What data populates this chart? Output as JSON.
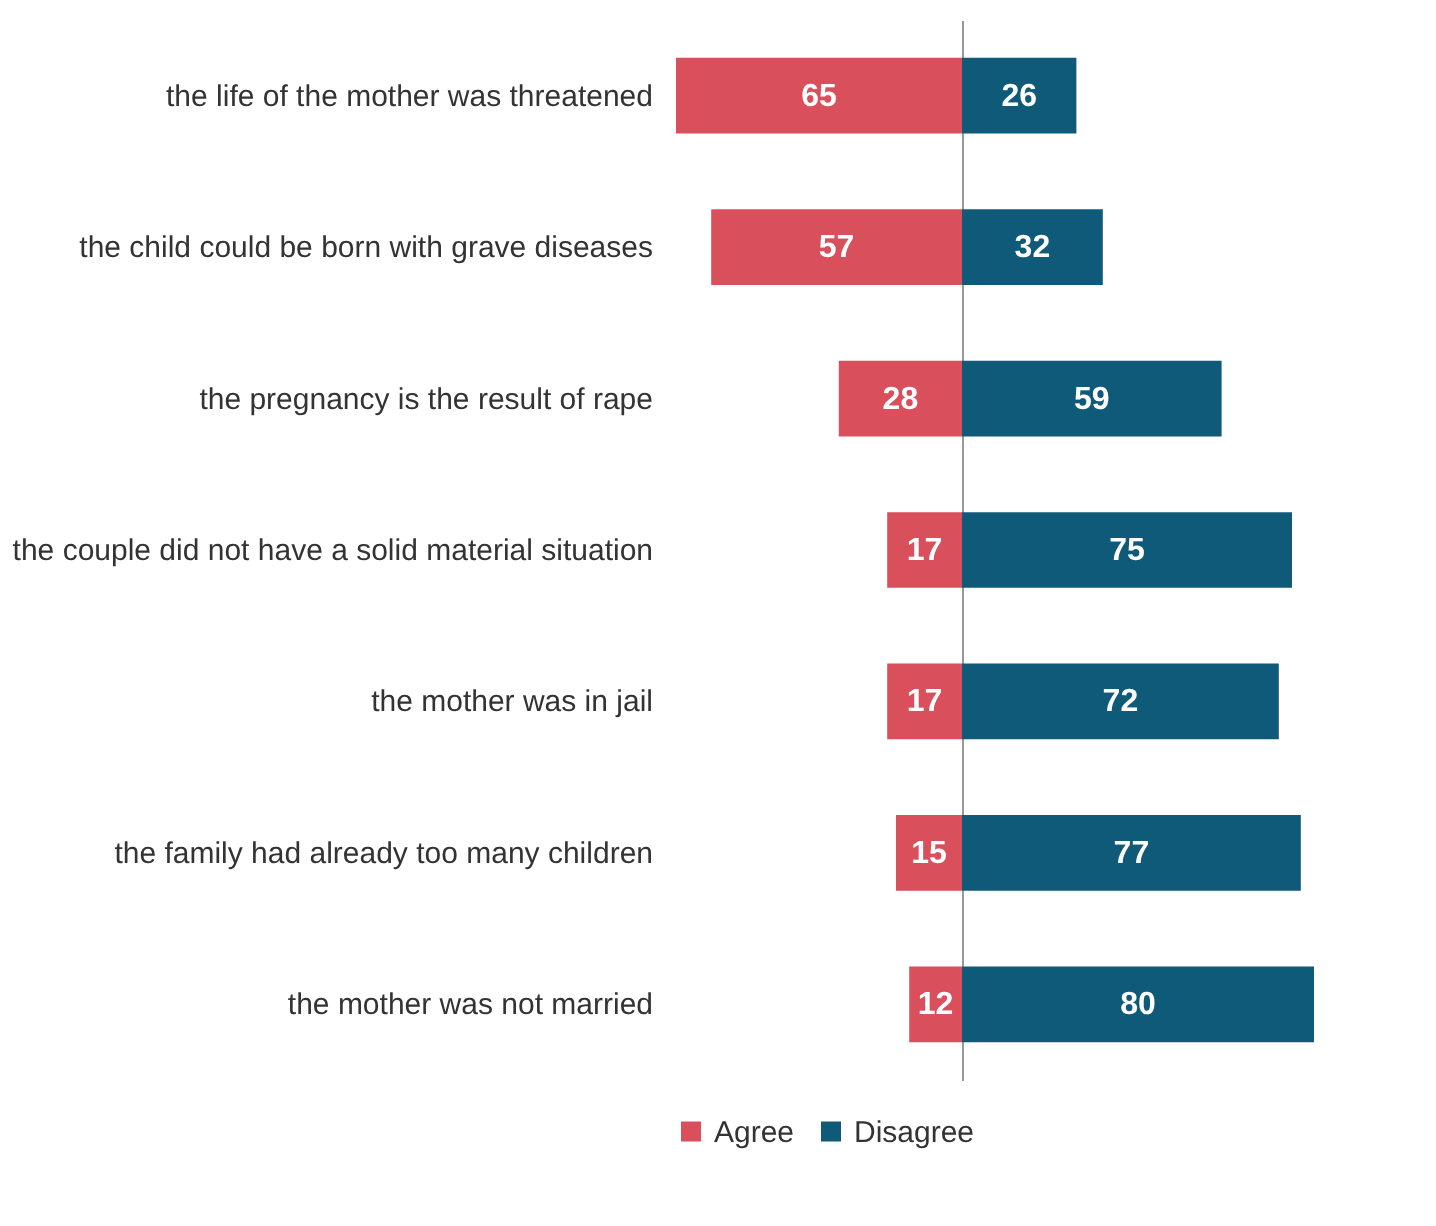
{
  "chart_data": [
    {
      "type": "bar",
      "orientation": "horizontal",
      "legend": "bottom",
      "data_labels": true,
      "tick_labels": "y",
      "xlim": [
        65,
        0
      ],
      "categories": [
        "the life of the mother was threatened",
        "the child could be born with grave diseases",
        "the pregnancy is the result of rape",
        "the couple did not have a solid material situation",
        "the mother was in jail",
        "the family had already too many children",
        "the mother was not married"
      ],
      "series": [
        {
          "name": "Agree",
          "color": "#d94f5c",
          "values": [
            65,
            57,
            28,
            17,
            17,
            15,
            12
          ]
        }
      ]
    },
    {
      "type": "bar",
      "orientation": "horizontal",
      "legend": "bottom",
      "data_labels": true,
      "tick_labels": false,
      "xlim": [
        0,
        80
      ],
      "categories": [
        null,
        null,
        null,
        null,
        null,
        null,
        null
      ],
      "series": [
        {
          "name": "Disagree",
          "color": "#0f5a78",
          "values": [
            26,
            32,
            59,
            75,
            72,
            77,
            80
          ]
        }
      ]
    }
  ]
}
